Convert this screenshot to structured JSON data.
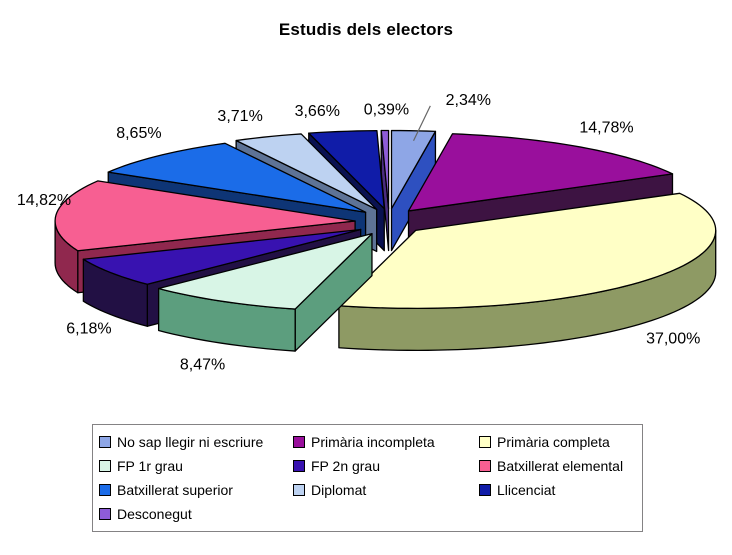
{
  "chart_data": {
    "type": "pie",
    "title": "Estudis dels electors",
    "unit": "%",
    "decimal_separator": ",",
    "effect": "3d-exploded",
    "legend_position": "bottom",
    "background_color": "#FFFFFF",
    "text_color": "#000000",
    "legend_border_color": "#848284",
    "outline_color": "#000000",
    "leader_line_color": "#666666",
    "slices": [
      {
        "key": "no-sap-llegir-ni-escriure",
        "label": "No sap llegir ni escriure",
        "value": 2.34,
        "percent_label": "2,34%",
        "top": "#8EA6E6",
        "side": "#2E50C0",
        "label_adjust": [
          52,
          0
        ],
        "leader": true
      },
      {
        "key": "primaria-incompleta",
        "label": "Primària incompleta",
        "value": 14.78,
        "percent_label": "14,78%",
        "top": "#990F9C",
        "side": "#3D1342",
        "label_adjust": [
          4,
          6
        ]
      },
      {
        "key": "primaria-completa",
        "label": "Primària completa",
        "value": 37.0,
        "percent_label": "37,00%",
        "top": "#FFFFC6",
        "side": "#8E9A64",
        "label_adjust": [
          -8,
          0
        ]
      },
      {
        "key": "fp-1r-grau",
        "label": "FP 1r grau",
        "value": 8.47,
        "percent_label": "8,47%",
        "top": "#D8F5E6",
        "side": "#5C9E7E",
        "label_adjust": [
          0,
          -4
        ]
      },
      {
        "key": "fp-2n-grau",
        "label": "FP 2n grau",
        "value": 6.18,
        "percent_label": "6,18%",
        "top": "#3812B0",
        "side": "#221044",
        "label_adjust": [
          10,
          -2
        ]
      },
      {
        "key": "batxillerat-elemental",
        "label": "Batxillerat elemental",
        "value": 14.82,
        "percent_label": "14,82%",
        "top": "#F75F92",
        "side": "#90284E",
        "label_adjust": [
          26,
          -12
        ]
      },
      {
        "key": "batxillerat-superior",
        "label": "Batxillerat superior",
        "value": 8.65,
        "percent_label": "8,65%",
        "top": "#1B6CE8",
        "side": "#0E3576",
        "label_adjust": [
          6,
          0
        ]
      },
      {
        "key": "diplomat",
        "label": "Diplomat",
        "value": 3.71,
        "percent_label": "3,71%",
        "top": "#BDD2F1",
        "side": "#5E7396",
        "label_adjust": [
          -14,
          8
        ]
      },
      {
        "key": "llicenciat",
        "label": "Llicenciat",
        "value": 3.66,
        "percent_label": "3,66%",
        "top": "#101CA8",
        "side": "#0A1150",
        "label_adjust": [
          -20,
          10
        ]
      },
      {
        "key": "desconegut",
        "label": "Desconegut",
        "value": 0.39,
        "percent_label": "0,39%",
        "top": "#8E5CD8",
        "side": "#4A2C80",
        "label_adjust": [
          2,
          10
        ]
      }
    ]
  }
}
